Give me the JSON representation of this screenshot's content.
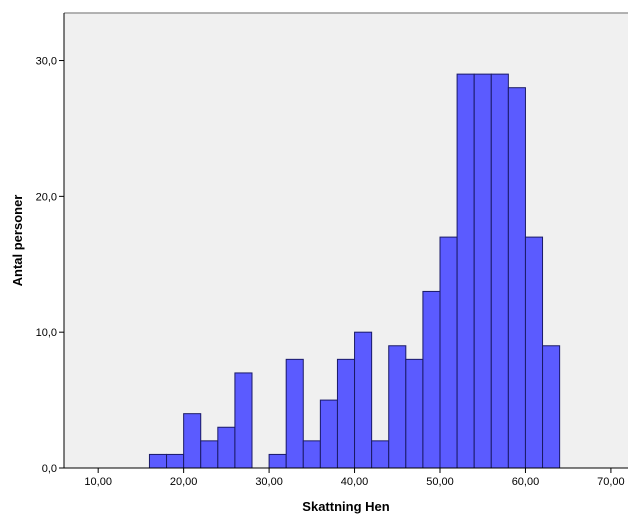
{
  "chart_data": {
    "type": "bar",
    "subtype": "histogram",
    "title": "",
    "xlabel": "Skattning Hen",
    "ylabel": "Antal personer",
    "xlim": [
      6,
      72
    ],
    "ylim": [
      0,
      33.5
    ],
    "xticks": [
      10,
      20,
      30,
      40,
      50,
      60,
      70
    ],
    "xtick_labels": [
      "10,00",
      "20,00",
      "30,00",
      "40,00",
      "50,00",
      "60,00",
      "70,00"
    ],
    "yticks": [
      0,
      10,
      20,
      30
    ],
    "ytick_labels": [
      "0,0",
      "10,0",
      "20,0",
      "30,0"
    ],
    "bin_width": 2,
    "bin_starts": [
      16,
      18,
      20,
      22,
      24,
      26,
      30,
      32,
      34,
      36,
      38,
      40,
      42,
      44,
      46,
      48,
      50,
      52,
      54,
      56,
      58,
      60,
      62
    ],
    "values": [
      1,
      1,
      4,
      2,
      3,
      7,
      1,
      8,
      2,
      5,
      8,
      10,
      2,
      9,
      8,
      13,
      17,
      29,
      29,
      29,
      28,
      17,
      9
    ],
    "grid": false,
    "legend": "none",
    "colors": {
      "bar_fill": "#5b5bff",
      "bar_stroke": "#1a1a66",
      "plot_background": "#f0f0f0",
      "frame": "#9a9a9a",
      "axis": "#000000"
    }
  }
}
